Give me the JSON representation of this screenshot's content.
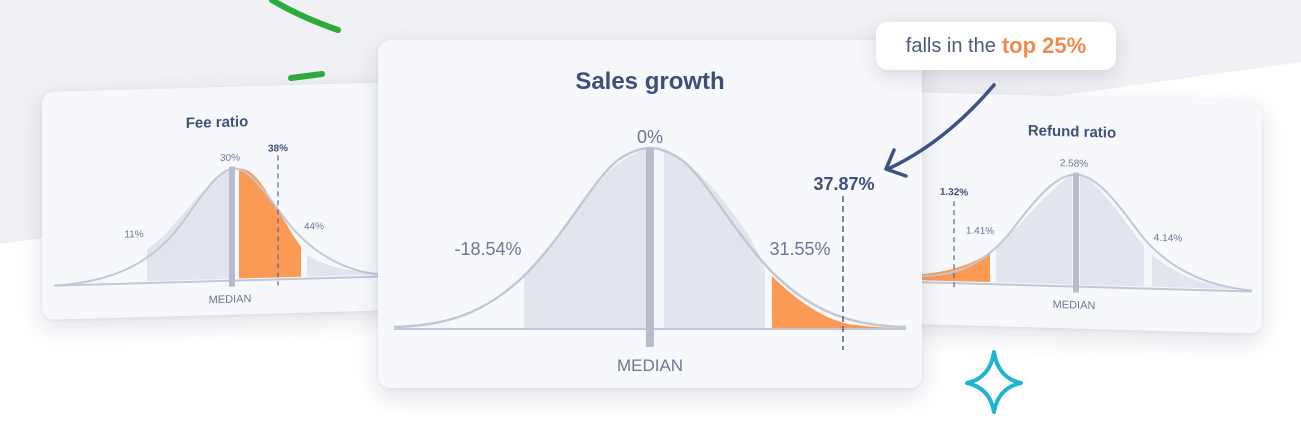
{
  "colors": {
    "title": "#3f4f7a",
    "label": "#6e7790",
    "curve": "#c2c7d6",
    "fill": "#e3e5ee",
    "median": "#b8bdcc",
    "highlight": "#fb9a55",
    "accent_text": "#f08b4c",
    "arrow": "#3e5184",
    "green": "#2eaa3c",
    "sparkle": "#1fb4d2"
  },
  "icons": {
    "sparkle": "sparkle-icon",
    "arrow": "curved-arrow-icon"
  },
  "callout": {
    "prefix": "falls in the",
    "highlight": "top 25%"
  },
  "chart_data": [
    {
      "type": "area",
      "title": "Fee ratio",
      "median_label": "MEDIAN",
      "markers": [
        {
          "label": "11%",
          "role": "low"
        },
        {
          "label": "30%",
          "role": "median"
        },
        {
          "label": "38%",
          "role": "value"
        },
        {
          "label": "44%",
          "role": "high"
        }
      ],
      "highlighted": "median to high"
    },
    {
      "type": "area",
      "title": "Sales growth",
      "median_label": "MEDIAN",
      "markers": [
        {
          "label": "-18.54%",
          "role": "low"
        },
        {
          "label": "0%",
          "role": "median"
        },
        {
          "label": "31.55%",
          "role": "high"
        },
        {
          "label": "37.87%",
          "role": "value"
        }
      ],
      "highlighted": "upper tail"
    },
    {
      "type": "area",
      "title": "Refund ratio",
      "median_label": "MEDIAN",
      "markers": [
        {
          "label": "1.32%",
          "role": "value"
        },
        {
          "label": "1.41%",
          "role": "low"
        },
        {
          "label": "2.58%",
          "role": "median"
        },
        {
          "label": "4.14%",
          "role": "high"
        }
      ],
      "highlighted": "lower tail"
    }
  ]
}
